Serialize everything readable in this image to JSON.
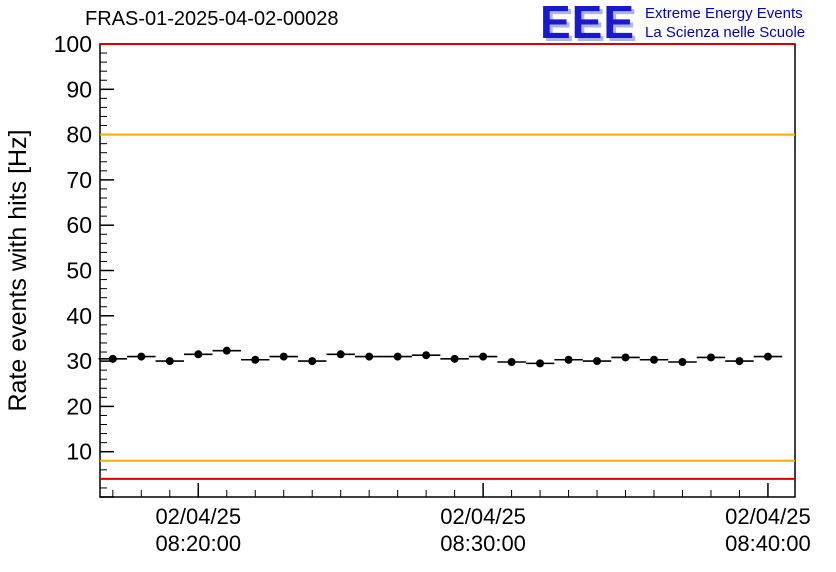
{
  "header": {
    "title": "FRAS-01-2025-04-02-00028"
  },
  "logo": {
    "acronym": "EEE",
    "line1": "Extreme Energy Events",
    "line2": "La Scienza nelle Scuole",
    "color": "#0000cc"
  },
  "chart_data": {
    "type": "scatter",
    "title": "FRAS-01-2025-04-02-00028",
    "xlabel": "",
    "ylabel": "Rate events with hits [Hz]",
    "ylim": [
      0,
      100
    ],
    "xlim_minutes": [
      -3.45,
      20.95
    ],
    "y_major_ticks": [
      0,
      10,
      20,
      30,
      40,
      50,
      60,
      70,
      80,
      90,
      100
    ],
    "y_tick_labels": [
      10,
      20,
      30,
      40,
      50,
      60,
      70,
      80,
      90,
      100
    ],
    "y_minor_step": 2,
    "x_major_ticks_minutes": [
      0,
      10,
      20
    ],
    "x_minor_step_minutes": 1,
    "x_tick_labels": [
      {
        "date": "02/04/25",
        "time": "08:20:00"
      },
      {
        "date": "02/04/25",
        "time": "08:30:00"
      },
      {
        "date": "02/04/25",
        "time": "08:40:00"
      }
    ],
    "reference_lines": [
      {
        "y": 100,
        "color": "#dd0000",
        "name": "upper-alarm"
      },
      {
        "y": 80,
        "color": "#ffaa00",
        "name": "upper-warning"
      },
      {
        "y": 8,
        "color": "#ffaa00",
        "name": "lower-warning"
      },
      {
        "y": 4,
        "color": "#dd0000",
        "name": "lower-alarm"
      }
    ],
    "series": [
      {
        "name": "rate-events-with-hits",
        "marker": "filled-circle",
        "color": "#000000",
        "xerr_minutes": 0.5,
        "points": [
          {
            "x": -3,
            "y": 30.5
          },
          {
            "x": -2,
            "y": 31.0
          },
          {
            "x": -1,
            "y": 30.0
          },
          {
            "x": 0,
            "y": 31.5
          },
          {
            "x": 1,
            "y": 32.3
          },
          {
            "x": 2,
            "y": 30.3
          },
          {
            "x": 3,
            "y": 31.0
          },
          {
            "x": 4,
            "y": 30.0
          },
          {
            "x": 5,
            "y": 31.5
          },
          {
            "x": 6,
            "y": 31.0
          },
          {
            "x": 7,
            "y": 31.0
          },
          {
            "x": 8,
            "y": 31.3
          },
          {
            "x": 9,
            "y": 30.5
          },
          {
            "x": 10,
            "y": 31.0
          },
          {
            "x": 11,
            "y": 29.8
          },
          {
            "x": 12,
            "y": 29.5
          },
          {
            "x": 13,
            "y": 30.3
          },
          {
            "x": 14,
            "y": 30.0
          },
          {
            "x": 15,
            "y": 30.8
          },
          {
            "x": 16,
            "y": 30.3
          },
          {
            "x": 17,
            "y": 29.8
          },
          {
            "x": 18,
            "y": 30.8
          },
          {
            "x": 19,
            "y": 30.0
          },
          {
            "x": 20,
            "y": 31.0
          }
        ]
      }
    ],
    "grid": false,
    "legend": "none"
  }
}
